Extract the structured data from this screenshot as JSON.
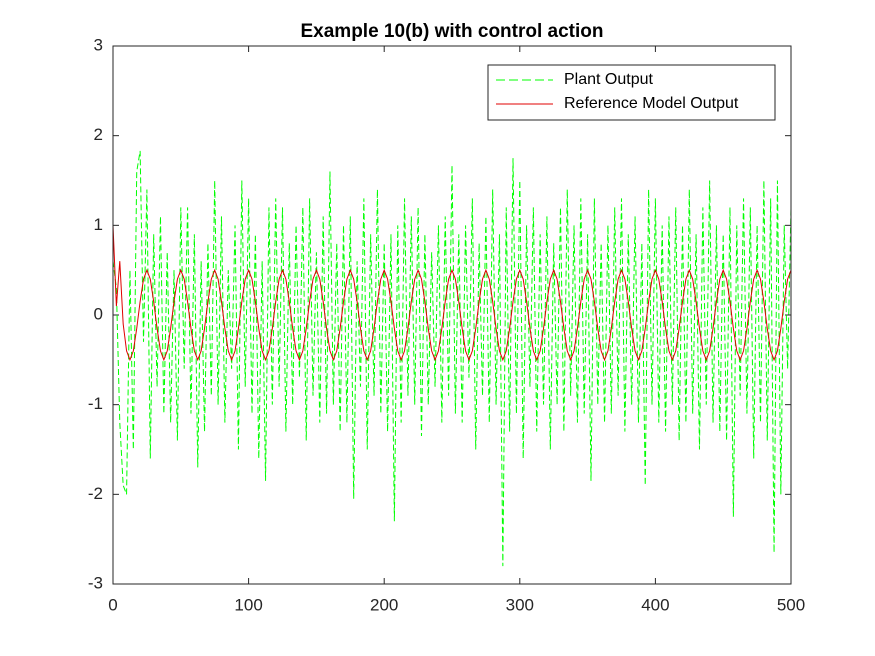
{
  "chart_data": {
    "type": "line",
    "title": "Example 10(b) with control action",
    "x": [
      0,
      2.5,
      5,
      7.5,
      10,
      12.5,
      15,
      17.5,
      20,
      22.5,
      25,
      27.5,
      30,
      32.5,
      35,
      37.5,
      40,
      42.5,
      45,
      47.5,
      50,
      52.5,
      55,
      57.5,
      60,
      62.5,
      65,
      67.5,
      70,
      72.5,
      75,
      77.5,
      80,
      82.5,
      85,
      87.5,
      90,
      92.5,
      95,
      97.5,
      100,
      102.5,
      105,
      107.5,
      110,
      112.5,
      115,
      117.5,
      120,
      122.5,
      125,
      127.5,
      130,
      132.5,
      135,
      137.5,
      140,
      142.5,
      145,
      147.5,
      150,
      152.5,
      155,
      157.5,
      160,
      162.5,
      165,
      167.5,
      170,
      172.5,
      175,
      177.5,
      180,
      182.5,
      185,
      187.5,
      190,
      192.5,
      195,
      197.5,
      200,
      202.5,
      205,
      207.5,
      210,
      212.5,
      215,
      217.5,
      220,
      222.5,
      225,
      227.5,
      230,
      232.5,
      235,
      237.5,
      240,
      242.5,
      245,
      247.5,
      250,
      252.5,
      255,
      257.5,
      260,
      262.5,
      265,
      267.5,
      270,
      272.5,
      275,
      277.5,
      280,
      282.5,
      285,
      287.5,
      290,
      292.5,
      295,
      297.5,
      300,
      302.5,
      305,
      307.5,
      310,
      312.5,
      315,
      317.5,
      320,
      322.5,
      325,
      327.5,
      330,
      332.5,
      335,
      337.5,
      340,
      342.5,
      345,
      347.5,
      350,
      352.5,
      355,
      357.5,
      360,
      362.5,
      365,
      367.5,
      370,
      372.5,
      375,
      377.5,
      380,
      382.5,
      385,
      387.5,
      390,
      392.5,
      395,
      397.5,
      400,
      402.5,
      405,
      407.5,
      410,
      412.5,
      415,
      417.5,
      420,
      422.5,
      425,
      427.5,
      430,
      432.5,
      435,
      437.5,
      440,
      442.5,
      445,
      447.5,
      450,
      452.5,
      455,
      457.5,
      460,
      462.5,
      465,
      467.5,
      470,
      472.5,
      475,
      477.5,
      480,
      482.5,
      485,
      487.5,
      490,
      492.5,
      495,
      497.5,
      500
    ],
    "series": [
      {
        "name": "Plant Output",
        "color": "#00ff00",
        "dash": true,
        "values": [
          0.6,
          0.3,
          -1.2,
          -1.9,
          -2.0,
          0.5,
          -1.5,
          1.6,
          1.83,
          -0.3,
          1.4,
          -1.6,
          0.9,
          -0.8,
          1.1,
          -1.1,
          0.7,
          -1.2,
          0.5,
          -1.4,
          1.2,
          -0.6,
          1.2,
          -1.1,
          0.9,
          -1.7,
          0.6,
          -1.3,
          0.8,
          -0.9,
          1.5,
          -1.0,
          1.1,
          -1.2,
          0.5,
          -0.6,
          1.0,
          -1.5,
          1.5,
          -0.8,
          1.3,
          -1.1,
          0.9,
          -1.6,
          0.6,
          -1.85,
          1.2,
          -1.0,
          1.3,
          -0.8,
          1.2,
          -1.3,
          0.8,
          -1.0,
          1.0,
          -0.7,
          1.2,
          -1.4,
          1.3,
          -0.9,
          0.7,
          -1.2,
          1.1,
          -1.1,
          1.6,
          -1.0,
          0.8,
          -1.3,
          1.0,
          -1.2,
          1.1,
          -2.05,
          0.6,
          -0.8,
          1.3,
          -1.5,
          0.9,
          -0.9,
          1.4,
          -1.1,
          0.8,
          -1.3,
          0.9,
          -2.3,
          1.0,
          -1.2,
          1.3,
          -0.9,
          1.1,
          -1.0,
          1.2,
          -1.35,
          0.9,
          -1.0,
          0.7,
          -0.8,
          1.0,
          -1.2,
          1.1,
          -0.9,
          1.67,
          -1.1,
          0.9,
          -1.2,
          1.0,
          -0.7,
          1.3,
          -1.5,
          0.8,
          -0.9,
          1.1,
          -1.2,
          1.4,
          -1.0,
          0.9,
          -2.8,
          1.2,
          -1.3,
          1.75,
          -1.1,
          1.5,
          -1.6,
          1.0,
          -0.8,
          1.2,
          -1.3,
          0.9,
          -1.0,
          1.1,
          -1.5,
          0.8,
          -1.0,
          1.2,
          -1.3,
          1.4,
          -0.9,
          1.0,
          -1.2,
          1.3,
          -1.1,
          0.9,
          -1.85,
          1.3,
          -1.0,
          0.8,
          -1.2,
          1.0,
          -1.1,
          1.2,
          -0.9,
          1.3,
          -1.3,
          0.9,
          -1.0,
          1.1,
          -1.2,
          0.8,
          -1.9,
          1.4,
          -1.0,
          1.3,
          -1.2,
          1.0,
          -1.3,
          1.1,
          -1.0,
          1.2,
          -1.4,
          1.0,
          -1.2,
          1.4,
          -1.1,
          0.9,
          -1.5,
          1.2,
          -1.0,
          1.5,
          -1.2,
          1.0,
          -1.3,
          0.9,
          -1.4,
          1.2,
          -2.25,
          1.0,
          -0.9,
          1.3,
          -1.1,
          1.2,
          -1.6,
          1.0,
          -1.2,
          1.5,
          -1.4,
          1.3,
          -2.65,
          1.5,
          -2.0,
          1.0,
          -0.6,
          1.2
        ]
      },
      {
        "name": "Reference Model Output",
        "color": "#e00000",
        "dash": false,
        "values": [
          1.0,
          0.1,
          0.6,
          -0.1,
          -0.4,
          -0.5,
          -0.4,
          -0.15,
          0.15,
          0.4,
          0.5,
          0.4,
          0.15,
          -0.15,
          -0.4,
          -0.5,
          -0.4,
          -0.15,
          0.15,
          0.4,
          0.5,
          0.4,
          0.15,
          -0.15,
          -0.4,
          -0.5,
          -0.4,
          -0.15,
          0.15,
          0.4,
          0.5,
          0.4,
          0.15,
          -0.15,
          -0.4,
          -0.5,
          -0.4,
          -0.15,
          0.15,
          0.4,
          0.5,
          0.4,
          0.15,
          -0.15,
          -0.4,
          -0.5,
          -0.4,
          -0.15,
          0.15,
          0.4,
          0.5,
          0.4,
          0.15,
          -0.15,
          -0.4,
          -0.5,
          -0.4,
          -0.15,
          0.15,
          0.4,
          0.5,
          0.4,
          0.15,
          -0.15,
          -0.4,
          -0.5,
          -0.4,
          -0.15,
          0.15,
          0.4,
          0.5,
          0.4,
          0.15,
          -0.15,
          -0.4,
          -0.5,
          -0.4,
          -0.15,
          0.15,
          0.4,
          0.5,
          0.4,
          0.15,
          -0.15,
          -0.4,
          -0.5,
          -0.4,
          -0.15,
          0.15,
          0.4,
          0.5,
          0.4,
          0.15,
          -0.15,
          -0.4,
          -0.5,
          -0.4,
          -0.15,
          0.15,
          0.4,
          0.5,
          0.4,
          0.15,
          -0.15,
          -0.4,
          -0.5,
          -0.4,
          -0.15,
          0.15,
          0.4,
          0.5,
          0.4,
          0.15,
          -0.15,
          -0.4,
          -0.5,
          -0.4,
          -0.15,
          0.15,
          0.4,
          0.5,
          0.4,
          0.15,
          -0.15,
          -0.4,
          -0.5,
          -0.4,
          -0.15,
          0.15,
          0.4,
          0.5,
          0.4,
          0.15,
          -0.15,
          -0.4,
          -0.5,
          -0.4,
          -0.15,
          0.15,
          0.4,
          0.5,
          0.4,
          0.15,
          -0.15,
          -0.4,
          -0.5,
          -0.4,
          -0.15,
          0.15,
          0.4,
          0.5,
          0.4,
          0.15,
          -0.15,
          -0.4,
          -0.5,
          -0.4,
          -0.15,
          0.15,
          0.4,
          0.5,
          0.4,
          0.15,
          -0.15,
          -0.4,
          -0.5,
          -0.4,
          -0.15,
          0.15,
          0.4,
          0.5,
          0.4,
          0.15,
          -0.15,
          -0.4,
          -0.5,
          -0.4,
          -0.15,
          0.15,
          0.4,
          0.5,
          0.4,
          0.15,
          -0.15,
          -0.4,
          -0.5,
          -0.4,
          -0.15,
          0.15,
          0.4,
          0.5,
          0.4,
          0.15,
          -0.15,
          -0.4,
          -0.5,
          -0.4,
          -0.15,
          0.15,
          0.4,
          0.5
        ]
      }
    ],
    "xlim": [
      0,
      500
    ],
    "xticks": [
      0,
      100,
      200,
      300,
      400,
      500
    ],
    "ylim": [
      -3,
      3
    ],
    "yticks": [
      -3,
      -2,
      -1,
      0,
      1,
      2,
      3
    ],
    "grid": false,
    "legend": "northeast"
  }
}
